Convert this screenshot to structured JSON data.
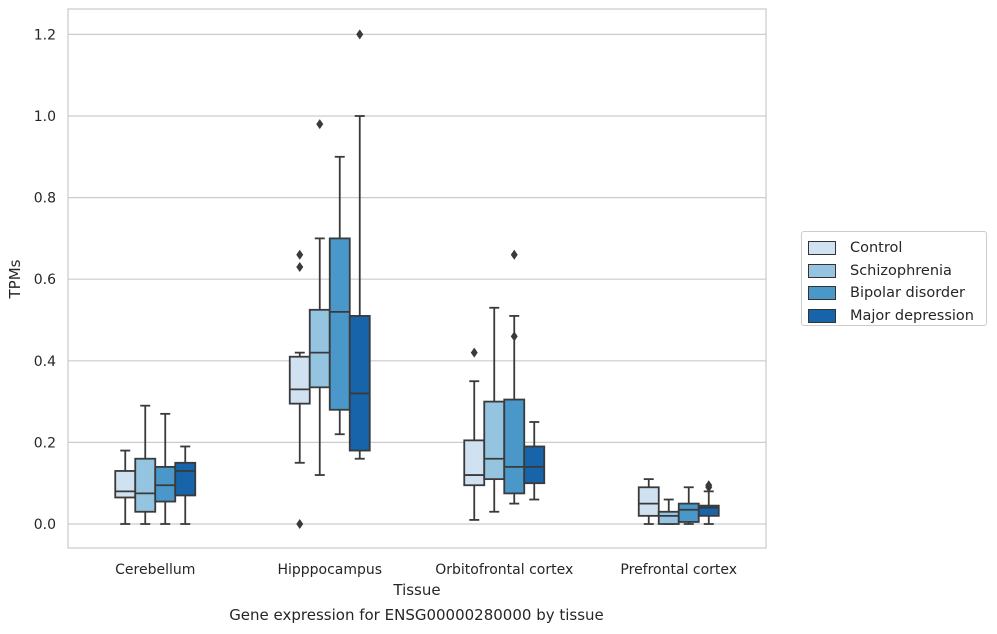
{
  "chart_data": {
    "type": "box",
    "xlabel": "Tissue",
    "ylabel": "TPMs",
    "caption": "Gene expression for ENSG00000280000 by tissue",
    "categories": [
      "Cerebellum",
      "Hipppocampus",
      "Orbitofrontal cortex",
      "Prefrontal cortex"
    ],
    "ylim": [
      -0.06,
      1.26
    ],
    "yticks": [
      0.0,
      0.2,
      0.4,
      0.6,
      0.8,
      1.0,
      1.2
    ],
    "ytick_labels": [
      "0.0",
      "0.2",
      "0.4",
      "0.6",
      "0.8",
      "1.0",
      "1.2"
    ],
    "grid": true,
    "legend_position": "right",
    "series": [
      {
        "name": "Control",
        "color": "#d0e1f2",
        "boxes": [
          {
            "whislo": 0.0,
            "q1": 0.065,
            "med": 0.08,
            "q3": 0.13,
            "whishi": 0.18,
            "fliers": []
          },
          {
            "whislo": 0.15,
            "q1": 0.295,
            "med": 0.33,
            "q3": 0.41,
            "whishi": 0.42,
            "fliers": [
              0.0,
              0.63,
              0.66
            ]
          },
          {
            "whislo": 0.01,
            "q1": 0.095,
            "med": 0.12,
            "q3": 0.205,
            "whishi": 0.35,
            "fliers": [
              0.42
            ]
          },
          {
            "whislo": 0.0,
            "q1": 0.02,
            "med": 0.05,
            "q3": 0.09,
            "whishi": 0.11,
            "fliers": []
          }
        ]
      },
      {
        "name": "Schizophrenia",
        "color": "#94c4df",
        "boxes": [
          {
            "whislo": 0.0,
            "q1": 0.03,
            "med": 0.075,
            "q3": 0.16,
            "whishi": 0.29,
            "fliers": []
          },
          {
            "whislo": 0.12,
            "q1": 0.335,
            "med": 0.42,
            "q3": 0.525,
            "whishi": 0.7,
            "fliers": [
              0.98
            ]
          },
          {
            "whislo": 0.03,
            "q1": 0.11,
            "med": 0.16,
            "q3": 0.3,
            "whishi": 0.53,
            "fliers": []
          },
          {
            "whislo": 0.0,
            "q1": 0.0,
            "med": 0.02,
            "q3": 0.03,
            "whishi": 0.06,
            "fliers": []
          }
        ]
      },
      {
        "name": "Bipolar disorder",
        "color": "#4a98c9",
        "boxes": [
          {
            "whislo": 0.0,
            "q1": 0.055,
            "med": 0.095,
            "q3": 0.14,
            "whishi": 0.27,
            "fliers": []
          },
          {
            "whislo": 0.22,
            "q1": 0.28,
            "med": 0.52,
            "q3": 0.7,
            "whishi": 0.9,
            "fliers": []
          },
          {
            "whislo": 0.05,
            "q1": 0.075,
            "med": 0.14,
            "q3": 0.305,
            "whishi": 0.51,
            "fliers": [
              0.46,
              0.66
            ]
          },
          {
            "whislo": 0.0,
            "q1": 0.005,
            "med": 0.035,
            "q3": 0.05,
            "whishi": 0.09,
            "fliers": []
          }
        ]
      },
      {
        "name": "Major depression",
        "color": "#1764ab",
        "boxes": [
          {
            "whislo": 0.0,
            "q1": 0.07,
            "med": 0.13,
            "q3": 0.15,
            "whishi": 0.19,
            "fliers": []
          },
          {
            "whislo": 0.16,
            "q1": 0.18,
            "med": 0.32,
            "q3": 0.51,
            "whishi": 1.0,
            "fliers": [
              1.2
            ]
          },
          {
            "whislo": 0.06,
            "q1": 0.1,
            "med": 0.14,
            "q3": 0.19,
            "whishi": 0.25,
            "fliers": []
          },
          {
            "whislo": 0.0,
            "q1": 0.02,
            "med": 0.04,
            "q3": 0.045,
            "whishi": 0.08,
            "fliers": [
              0.09,
              0.095
            ]
          }
        ]
      }
    ]
  }
}
